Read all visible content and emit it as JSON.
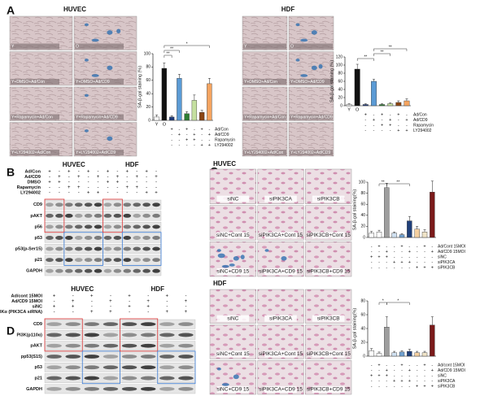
{
  "panels": {
    "A": {
      "label": "A",
      "groups": [
        {
          "title": "HUVEC",
          "images": [
            "Y",
            "O",
            "Y+DMSO+Ad/Con",
            "Y+DMSO+Ad/CD9",
            "Y+Rapamycin+Ad/Con",
            "Y+Rapamycin+Ad/CD9",
            "Y+LY294002+Ad/Con",
            "Y+LY294002+Ad/CD9"
          ]
        },
        {
          "title": "HDF",
          "images": [
            "Y",
            "O",
            "Y+DMSO+Ad/Con",
            "Y+DMSO+Ad/CD9",
            "Y+Rapamycin+Ad/Con",
            "Y+Rapamycin+Ad/CD9",
            "Y+LY294002+Ad/Con",
            "Y+LY294002+Ad/CD9"
          ]
        }
      ]
    },
    "B": {
      "label": "B",
      "cell_lines": [
        "HUVEC",
        "HDF"
      ],
      "conditions": [
        {
          "name": "Ad/Con",
          "signs": [
            "+",
            "-",
            "+",
            "-",
            "+",
            "-",
            "+",
            "-",
            "+",
            "-",
            "+",
            "-"
          ]
        },
        {
          "name": "Ad/CD9",
          "signs": [
            "-",
            "+",
            "-",
            "+",
            "-",
            "+",
            "-",
            "+",
            "-",
            "+",
            "-",
            "+"
          ]
        },
        {
          "name": "DMSO",
          "signs": [
            "+",
            "+",
            "-",
            "-",
            "-",
            "-",
            "+",
            "+",
            "-",
            "-",
            "-",
            "-"
          ]
        },
        {
          "name": "Rapamycin",
          "signs": [
            "-",
            "-",
            "+",
            "+",
            "-",
            "-",
            "-",
            "-",
            "+",
            "+",
            "-",
            "-"
          ]
        },
        {
          "name": "LY294002",
          "signs": [
            "-",
            "-",
            "-",
            "-",
            "+",
            "+",
            "-",
            "-",
            "-",
            "-",
            "+",
            "+"
          ]
        }
      ],
      "bands": [
        "CD9",
        "pAKT",
        "p56",
        "p53",
        "p53(p-Ser15)",
        "p21",
        "GAPDH"
      ]
    },
    "C": {
      "label": "C",
      "groups": [
        {
          "title": "HUVEC",
          "images": [
            "siNC",
            "siPIK3CA",
            "siPIK3CB",
            "siNC+Cont 15",
            "siPIK3CA+Cont 15",
            "siPIK3CB+Cont 15",
            "siNC+CD9 15",
            "siPIK3CA+CD9 15",
            "siPIK3CB+CD9 15"
          ]
        },
        {
          "title": "HDF",
          "images": [
            "siNC",
            "siPIK3CA",
            "siPIK3CB",
            "siNC+Cont 15",
            "siPIK3CA+Cont 15",
            "siPIK3CB+Cont 15",
            "siNC+CD9 15",
            "siPIK3CA+CD9 15",
            "siPIK3CB+CD9 15"
          ]
        }
      ]
    },
    "D": {
      "label": "D",
      "cell_lines": [
        "HUVEC",
        "HDF"
      ],
      "conditions": [
        {
          "name": "Ad/cont 15MOI",
          "signs": [
            "+",
            "-",
            "+",
            "-",
            "+",
            "-",
            "+",
            "-"
          ]
        },
        {
          "name": "Ad/CD9 15MOI",
          "signs": [
            "-",
            "+",
            "-",
            "+",
            "-",
            "+",
            "-",
            "+"
          ]
        },
        {
          "name": "siNC",
          "signs": [
            "+",
            "+",
            "-",
            "-",
            "+",
            "+",
            "-",
            "-"
          ]
        },
        {
          "name": "siPI3Kα (PIK3CA siRNA)",
          "signs": [
            "-",
            "-",
            "+",
            "+",
            "-",
            "-",
            "+",
            "+"
          ]
        }
      ],
      "bands": [
        "CD9",
        "PI3K(p110α)",
        "pAKT",
        "pp53(S15)",
        "p53",
        "p21",
        "GAPDH"
      ]
    }
  },
  "chart_data": [
    {
      "type": "bar",
      "ylabel": "SA-β-gal staining (%)",
      "categories": [
        "Y",
        "O",
        null,
        null,
        null,
        null,
        null,
        null
      ],
      "values": [
        5,
        78,
        5,
        63,
        10,
        30,
        12,
        55
      ],
      "errors": [
        3,
        8,
        2,
        6,
        3,
        8,
        3,
        8
      ],
      "colors": [
        "#ffffff",
        "#111111",
        "#1f3a7a",
        "#5b9bd5",
        "#2e7d32",
        "#c5e0a0",
        "#8b4513",
        "#f4a460"
      ],
      "ylim": [
        0,
        100
      ],
      "yticks": [
        0,
        20,
        40,
        60,
        80,
        100
      ],
      "annotations": [
        "**",
        "**",
        "*"
      ],
      "conditions": [
        {
          "name": "Ad/Con",
          "signs": [
            "+",
            "-",
            "+",
            "-",
            "+",
            "-"
          ]
        },
        {
          "name": "Ad/CD9",
          "signs": [
            "-",
            "+",
            "-",
            "+",
            "-",
            "+"
          ]
        },
        {
          "name": "Rapamycin",
          "signs": [
            "-",
            "-",
            "+",
            "+",
            "-",
            "-"
          ]
        },
        {
          "name": "LY294002",
          "signs": [
            "-",
            "-",
            "-",
            "-",
            "+",
            "+"
          ]
        }
      ]
    },
    {
      "type": "bar",
      "ylabel": "SA-β-gal staining (%)",
      "categories": [
        "Y",
        "O",
        null,
        null,
        null,
        null,
        null,
        null
      ],
      "values": [
        3,
        90,
        3,
        60,
        3,
        5,
        8,
        12
      ],
      "errors": [
        2,
        12,
        2,
        5,
        2,
        2,
        4,
        5
      ],
      "colors": [
        "#ffffff",
        "#111111",
        "#1f3a7a",
        "#5b9bd5",
        "#2e7d32",
        "#c5e0a0",
        "#8b4513",
        "#f4a460"
      ],
      "ylim": [
        0,
        120
      ],
      "yticks": [
        0,
        20,
        40,
        60,
        80,
        100,
        120
      ],
      "annotations": [
        "**",
        "**",
        "**"
      ],
      "conditions": [
        {
          "name": "Ad/Con",
          "signs": [
            "+",
            "-",
            "+",
            "-",
            "+",
            "-"
          ]
        },
        {
          "name": "Ad/CD9",
          "signs": [
            "-",
            "+",
            "-",
            "+",
            "-",
            "+"
          ]
        },
        {
          "name": "Rapamycin",
          "signs": [
            "-",
            "-",
            "+",
            "+",
            "-",
            "-"
          ]
        },
        {
          "name": "LY294002",
          "signs": [
            "-",
            "-",
            "-",
            "-",
            "+",
            "+"
          ]
        }
      ]
    },
    {
      "type": "bar",
      "ylabel": "SA-β-gal staining(%)",
      "categories": [
        null,
        null,
        null,
        null,
        null,
        null,
        null,
        null,
        null
      ],
      "values": [
        8,
        10,
        90,
        8,
        5,
        30,
        15,
        10,
        82
      ],
      "errors": [
        3,
        3,
        8,
        2,
        2,
        8,
        5,
        4,
        20
      ],
      "colors": [
        "#ffffff",
        "#ffffff",
        "#9e9e9e",
        "#cfe0f0",
        "#6fa0d0",
        "#1f3f7a",
        "#f5d0a0",
        "#f0e4c8",
        "#7a1a1a"
      ],
      "ylim": [
        0,
        100
      ],
      "yticks": [
        0,
        20,
        40,
        60,
        80,
        100
      ],
      "annotations": [
        "**",
        "**"
      ],
      "conditions": [
        {
          "name": "Ad/Cont 15MOI",
          "signs": [
            "-",
            "+",
            "-",
            "-",
            "+",
            "-",
            "-",
            "+",
            "-"
          ]
        },
        {
          "name": "Ad/CD9 15MOI",
          "signs": [
            "-",
            "-",
            "+",
            "-",
            "-",
            "+",
            "-",
            "-",
            "+"
          ]
        },
        {
          "name": "siNC",
          "signs": [
            "+",
            "+",
            "+",
            "-",
            "-",
            "-",
            "-",
            "-",
            "-"
          ]
        },
        {
          "name": "siPIK3CA",
          "signs": [
            "-",
            "-",
            "-",
            "+",
            "+",
            "+",
            "-",
            "-",
            "-"
          ]
        },
        {
          "name": "siPIK3CB",
          "signs": [
            "-",
            "-",
            "-",
            "-",
            "-",
            "-",
            "+",
            "+",
            "+"
          ]
        }
      ]
    },
    {
      "type": "bar",
      "ylabel": "SA-β-gal staining(%)",
      "categories": [
        null,
        null,
        null,
        null,
        null,
        null,
        null,
        null,
        null
      ],
      "values": [
        8,
        4,
        42,
        5,
        6,
        7,
        5,
        5,
        45
      ],
      "errors": [
        3,
        2,
        15,
        2,
        2,
        3,
        2,
        2,
        12
      ],
      "colors": [
        "#ffffff",
        "#ffffff",
        "#9e9e9e",
        "#cfe0f0",
        "#6fa0d0",
        "#1f3f7a",
        "#f5d0a0",
        "#f0e4c8",
        "#7a1a1a"
      ],
      "ylim": [
        0,
        80
      ],
      "yticks": [
        0,
        20,
        40,
        60,
        80
      ],
      "annotations": [
        "*",
        "*"
      ],
      "conditions": [
        {
          "name": "Ad/cont 15MOI",
          "signs": [
            "-",
            "+",
            "-",
            "-",
            "+",
            "-",
            "-",
            "+",
            "-"
          ]
        },
        {
          "name": "Ad/CD9 15MOI",
          "signs": [
            "-",
            "-",
            "+",
            "-",
            "-",
            "+",
            "-",
            "-",
            "+"
          ]
        },
        {
          "name": "siNC",
          "signs": [
            "+",
            "+",
            "+",
            "-",
            "-",
            "-",
            "-",
            "-",
            "-"
          ]
        },
        {
          "name": "siPIK3CA",
          "signs": [
            "-",
            "-",
            "-",
            "+",
            "+",
            "+",
            "-",
            "-",
            "-"
          ]
        },
        {
          "name": "siPIK3CB",
          "signs": [
            "-",
            "-",
            "-",
            "-",
            "-",
            "-",
            "+",
            "+",
            "+"
          ]
        }
      ]
    }
  ]
}
